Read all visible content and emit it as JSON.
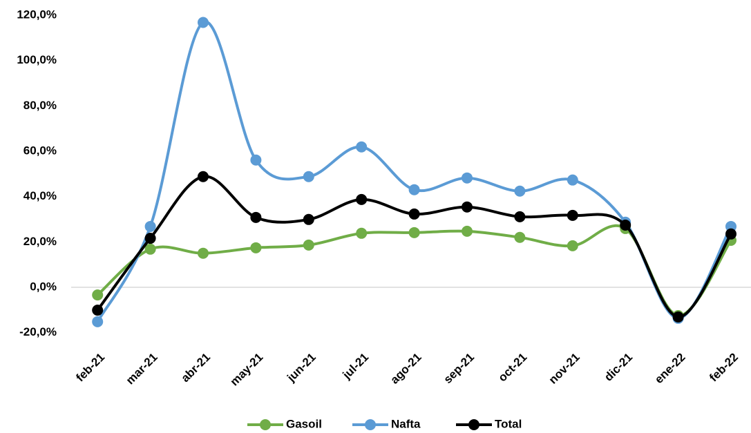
{
  "chart_data": {
    "type": "line",
    "categories": [
      "feb-21",
      "mar-21",
      "abr-21",
      "may-21",
      "jun-21",
      "jul-21",
      "ago-21",
      "sep-21",
      "oct-21",
      "nov-21",
      "dic-21",
      "ene-22",
      "feb-22"
    ],
    "series": [
      {
        "name": "Gasoil",
        "color": "#70ad47",
        "values": [
          -3.4,
          16.8,
          15.0,
          17.4,
          18.6,
          23.8,
          24.1,
          24.7,
          22.0,
          18.3,
          25.9,
          -12.5,
          20.7
        ]
      },
      {
        "name": "Nafta",
        "color": "#5b9bd5",
        "values": [
          -15.2,
          26.8,
          116.8,
          56.1,
          48.8,
          61.9,
          43.0,
          48.2,
          42.4,
          47.3,
          28.7,
          -13.7,
          26.8
        ]
      },
      {
        "name": "Total",
        "color": "#000000",
        "values": [
          -10.1,
          21.6,
          48.8,
          30.8,
          29.9,
          38.7,
          32.3,
          35.4,
          31.1,
          31.7,
          27.4,
          -13.1,
          23.5
        ]
      }
    ],
    "ylim": [
      -20,
      120
    ],
    "yticks": [
      {
        "value": -20,
        "label": "-20,0%"
      },
      {
        "value": 0,
        "label": "0,0%"
      },
      {
        "value": 20,
        "label": "20,0%"
      },
      {
        "value": 40,
        "label": "40,0%"
      },
      {
        "value": 60,
        "label": "60,0%"
      },
      {
        "value": 80,
        "label": "80,0%"
      },
      {
        "value": 100,
        "label": "100,0%"
      },
      {
        "value": 120,
        "label": "120,0%"
      }
    ],
    "grid": false,
    "smooth": true,
    "legend": "bottom"
  }
}
